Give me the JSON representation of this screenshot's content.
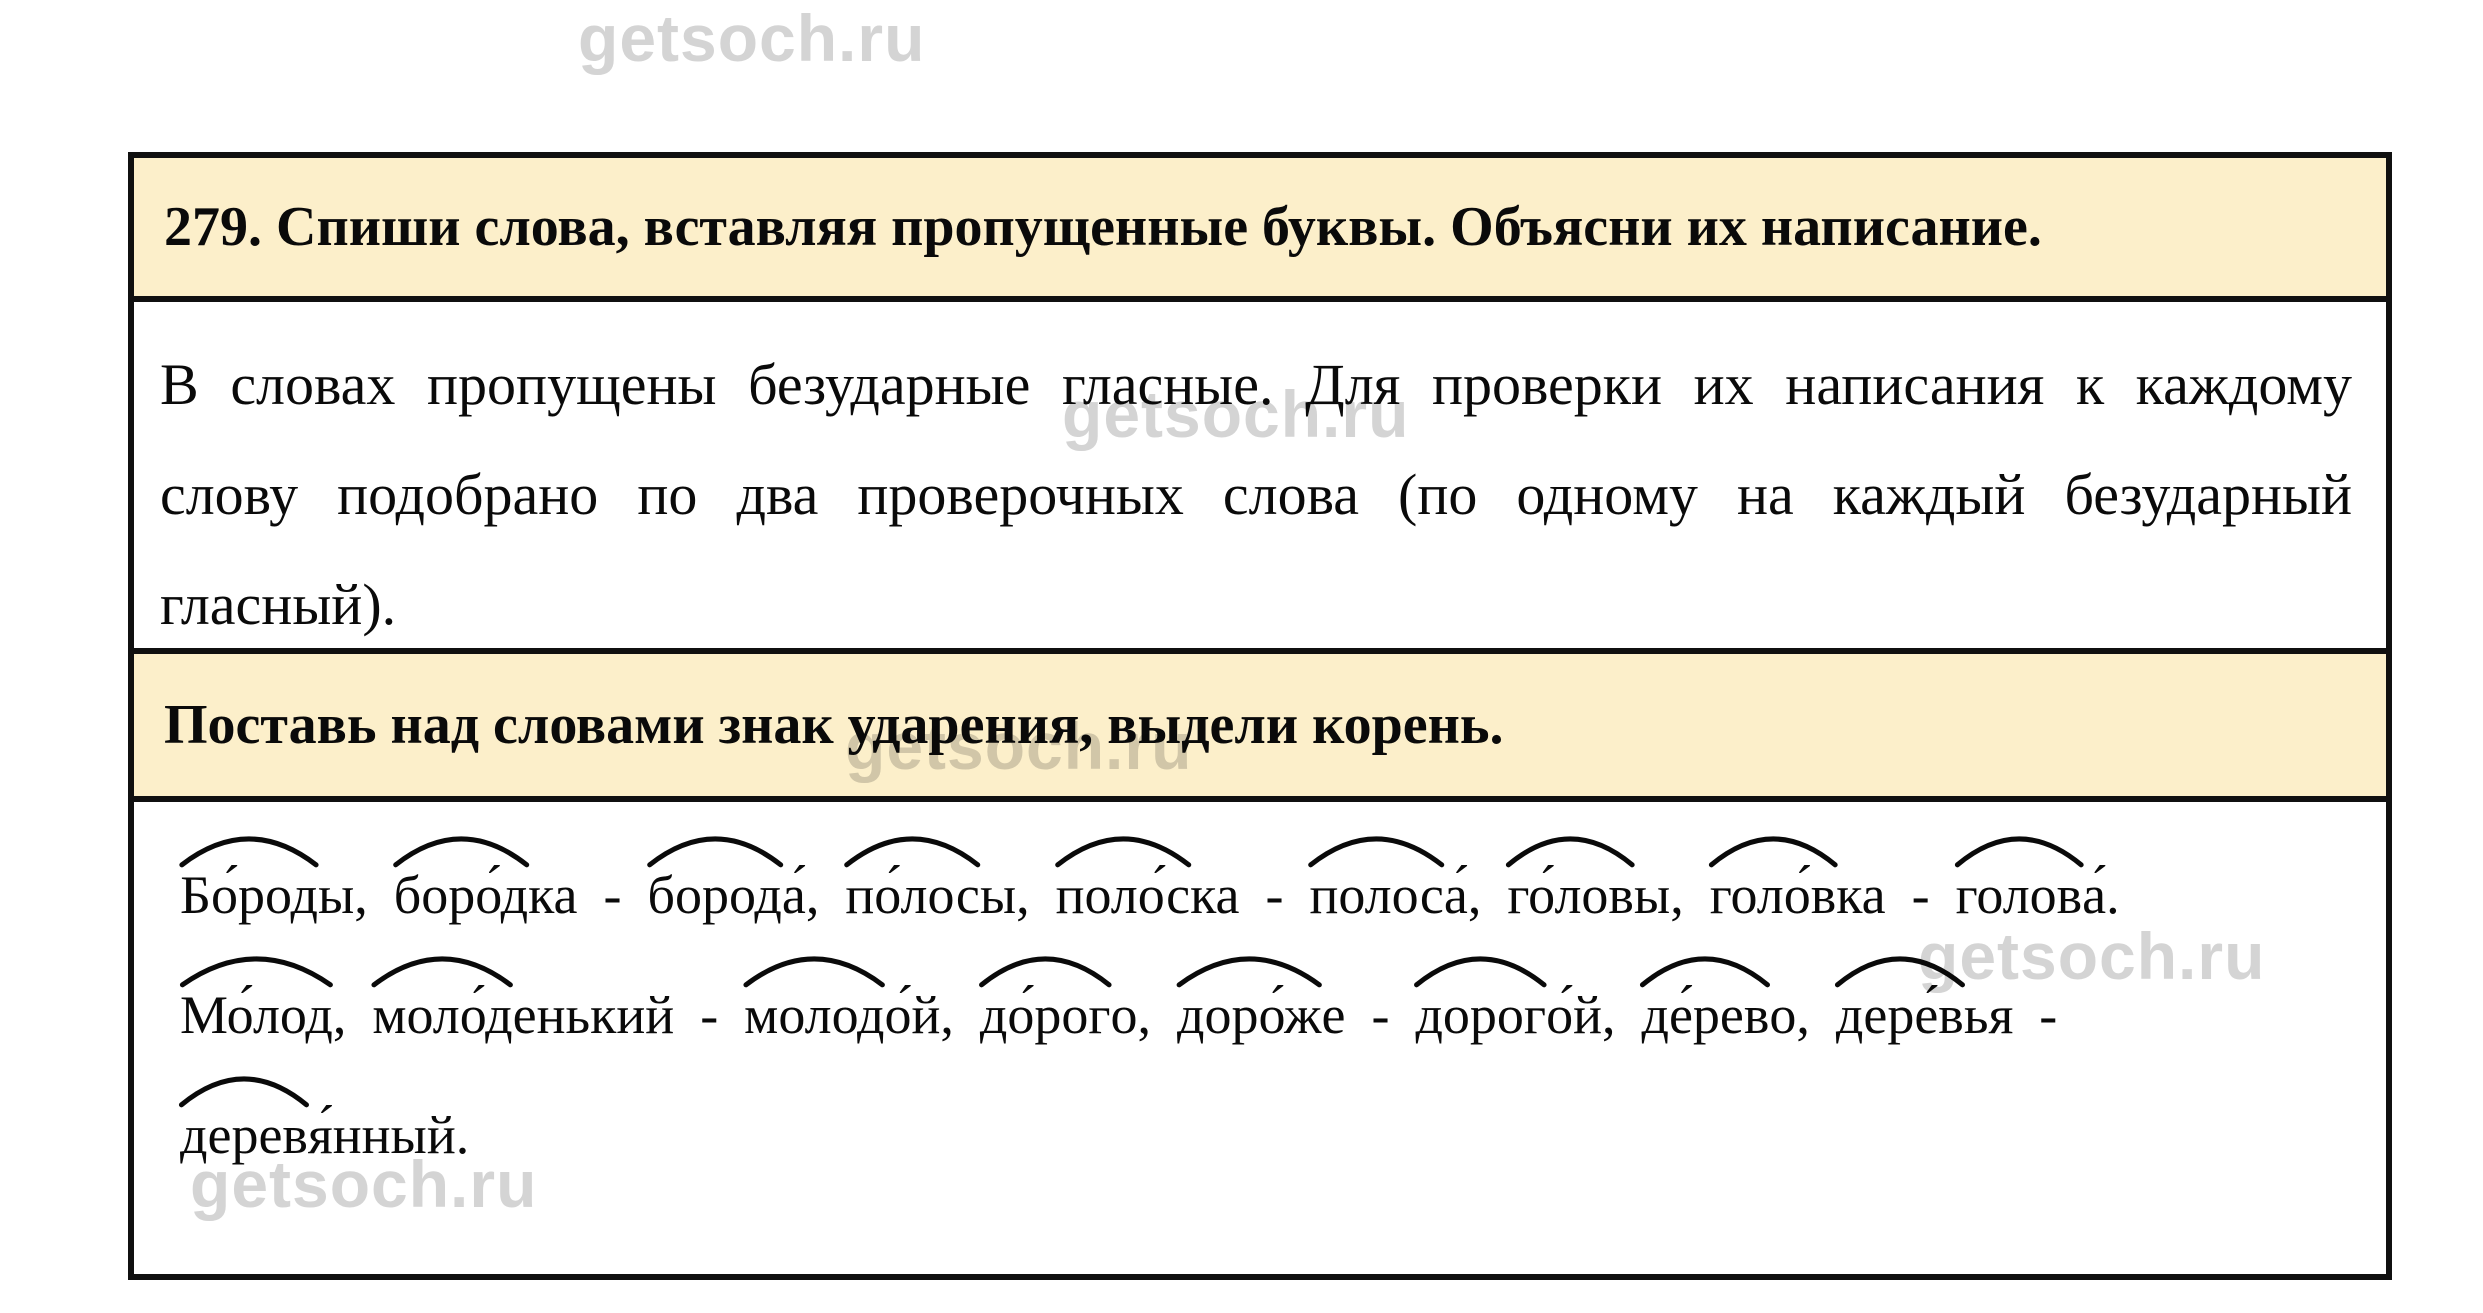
{
  "watermark": {
    "text": "getsoch.ru",
    "color": "#d4d4d4"
  },
  "colors": {
    "highlight_background": "#fcefca",
    "table_border": "#101010",
    "text": "#0a0a0a"
  },
  "task": {
    "number_title": "279. Спиши слова, вставляя пропущенные буквы. Объясни их написание."
  },
  "explanation": {
    "lines": [
      "В словах пропущены безударные гласные. Для проверки их написания к каждому",
      "слову подобрано по два проверочных слова (по одному на каждый безударный",
      "гласный)."
    ]
  },
  "instruction": "Поставь над словами знак ударения, выдели корень.",
  "answer": {
    "root_mark": "arc-over-root",
    "lines": [
      [
        {
          "root": "Бо́род",
          "rest": "ы,"
        },
        {
          "root": "боро́д",
          "rest": "ка"
        },
        {
          "sep": "-"
        },
        {
          "root": "бород",
          "rest": "а́,"
        },
        {
          "root": "по́лос",
          "rest": "ы,"
        },
        {
          "root": "поло́с",
          "rest": "ка"
        },
        {
          "sep": "-"
        },
        {
          "root": "полос",
          "rest": "а́,"
        },
        {
          "root": "го́лов",
          "rest": "ы,"
        },
        {
          "root": "голо́в",
          "rest": "ка"
        },
        {
          "sep": "-"
        },
        {
          "root": "голов",
          "rest": "а́."
        }
      ],
      [
        {
          "root": "Мо́лод",
          "rest": ","
        },
        {
          "root": "моло́д",
          "rest": "енький"
        },
        {
          "sep": "-"
        },
        {
          "root": "молод",
          "rest": "о́й,"
        },
        {
          "root": "до́рог",
          "rest": "о,"
        },
        {
          "root": "доро́ж",
          "rest": "е"
        },
        {
          "sep": "-"
        },
        {
          "root": "дорог",
          "rest": "о́й,"
        },
        {
          "root": "де́рев",
          "rest": "о,"
        },
        {
          "root": "дере́в",
          "rest": "ья"
        },
        {
          "sep": "-"
        }
      ],
      [
        {
          "root": "дерев",
          "rest": "я́нный."
        }
      ]
    ]
  }
}
